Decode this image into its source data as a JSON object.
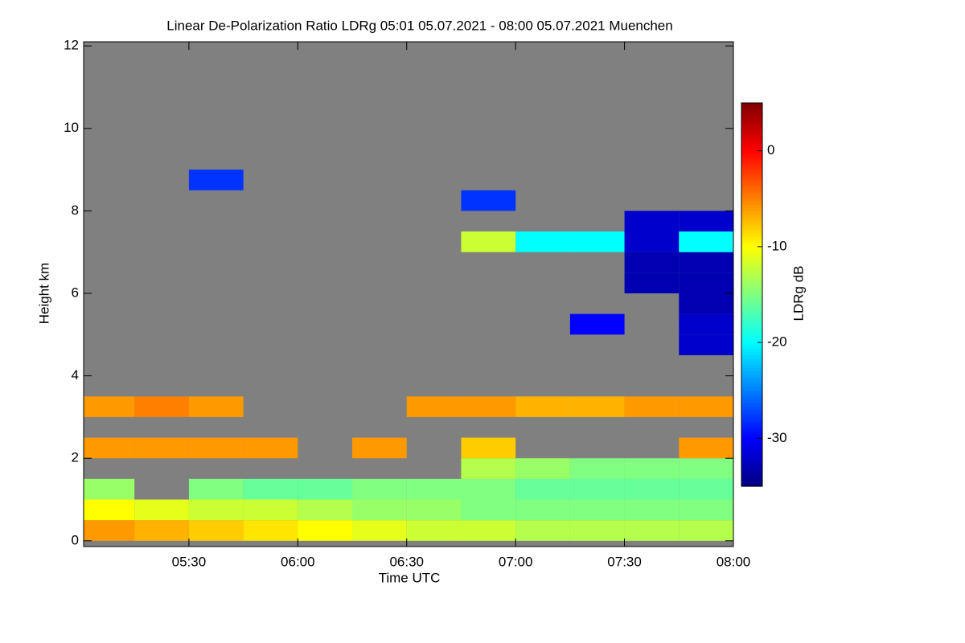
{
  "chart_data": {
    "type": "heatmap",
    "title": "Linear De-Polarization Ratio LDRg   05:01 05.07.2021 - 08:00 05.07.2021 Muenchen",
    "x_label": "Time UTC",
    "y_label": "Height km",
    "colorbar_label": "LDRg dB",
    "colormap": "jet",
    "missing_color": "#808080",
    "xlim": [
      301,
      480
    ],
    "xticks": [
      {
        "value": 330,
        "label": "05:30"
      },
      {
        "value": 360,
        "label": "06:00"
      },
      {
        "value": 390,
        "label": "06:30"
      },
      {
        "value": 420,
        "label": "07:00"
      },
      {
        "value": 450,
        "label": "07:30"
      },
      {
        "value": 480,
        "label": "08:00"
      }
    ],
    "ylim": [
      -0.14,
      12.1
    ],
    "yticks": [
      0,
      2,
      4,
      6,
      8,
      10,
      12
    ],
    "zlim": [
      -35,
      5
    ],
    "zticks": [
      0,
      -10,
      -20,
      -30
    ],
    "x_edges": [
      301,
      315,
      330,
      345,
      360,
      375,
      390,
      405,
      420,
      435,
      450,
      465,
      480
    ],
    "y_edges": [
      0,
      0.5,
      1,
      1.5,
      2,
      2.5,
      3,
      3.5,
      4,
      4.5,
      5,
      5.5,
      6,
      6.5,
      7,
      7.5,
      8,
      8.5,
      9,
      9.5,
      10,
      10.5,
      11,
      11.5,
      12
    ],
    "z": [
      [
        -6,
        -7,
        -8,
        -9,
        -10,
        -11,
        -12,
        -12,
        -13,
        -13,
        -13,
        -13
      ],
      [
        -10,
        -11,
        -12,
        -12,
        -13,
        -14,
        -14,
        -15,
        -15,
        -15,
        -15,
        -15
      ],
      [
        -14,
        null,
        -15,
        -16,
        -16,
        -15,
        -15,
        -15,
        -16,
        -16,
        -16,
        -16
      ],
      [
        null,
        null,
        null,
        null,
        null,
        null,
        null,
        -13,
        -14,
        -15,
        -15,
        -15
      ],
      [
        -6,
        -6,
        -6,
        -6,
        null,
        -6,
        null,
        -8,
        null,
        null,
        null,
        -6
      ],
      [
        null,
        null,
        null,
        null,
        null,
        null,
        null,
        null,
        null,
        null,
        null,
        null
      ],
      [
        -6,
        -5,
        -6,
        null,
        null,
        null,
        -6,
        -6,
        -7,
        -7,
        -6,
        -6
      ],
      [
        null,
        null,
        null,
        null,
        null,
        null,
        null,
        null,
        null,
        null,
        null,
        null
      ],
      [
        null,
        null,
        null,
        null,
        null,
        null,
        null,
        null,
        null,
        null,
        null,
        null
      ],
      [
        null,
        null,
        null,
        null,
        null,
        null,
        null,
        null,
        null,
        null,
        null,
        -32
      ],
      [
        null,
        null,
        null,
        null,
        null,
        null,
        null,
        null,
        null,
        -30,
        null,
        -32
      ],
      [
        null,
        null,
        null,
        null,
        null,
        null,
        null,
        null,
        null,
        null,
        null,
        -33
      ],
      [
        null,
        null,
        null,
        null,
        null,
        null,
        null,
        null,
        null,
        null,
        -33,
        -33
      ],
      [
        null,
        null,
        null,
        null,
        null,
        null,
        null,
        null,
        null,
        null,
        -33,
        -33
      ],
      [
        null,
        null,
        null,
        null,
        null,
        null,
        null,
        -12,
        -20,
        -20,
        -32,
        -20
      ],
      [
        null,
        null,
        null,
        null,
        null,
        null,
        null,
        null,
        null,
        null,
        -32,
        -32
      ],
      [
        null,
        null,
        null,
        null,
        null,
        null,
        null,
        -28,
        null,
        null,
        null,
        null
      ],
      [
        null,
        null,
        -28,
        null,
        null,
        null,
        null,
        null,
        null,
        null,
        null,
        null
      ],
      [
        null,
        null,
        null,
        null,
        null,
        null,
        null,
        null,
        null,
        null,
        null,
        null
      ],
      [
        null,
        null,
        null,
        null,
        null,
        null,
        null,
        null,
        null,
        null,
        null,
        null
      ],
      [
        null,
        null,
        null,
        null,
        null,
        null,
        null,
        null,
        null,
        null,
        null,
        null
      ],
      [
        null,
        null,
        null,
        null,
        null,
        null,
        null,
        null,
        null,
        null,
        null,
        null
      ],
      [
        null,
        null,
        null,
        null,
        null,
        null,
        null,
        null,
        null,
        null,
        null,
        null
      ],
      [
        null,
        null,
        null,
        null,
        null,
        null,
        null,
        null,
        null,
        null,
        null,
        null
      ]
    ]
  }
}
